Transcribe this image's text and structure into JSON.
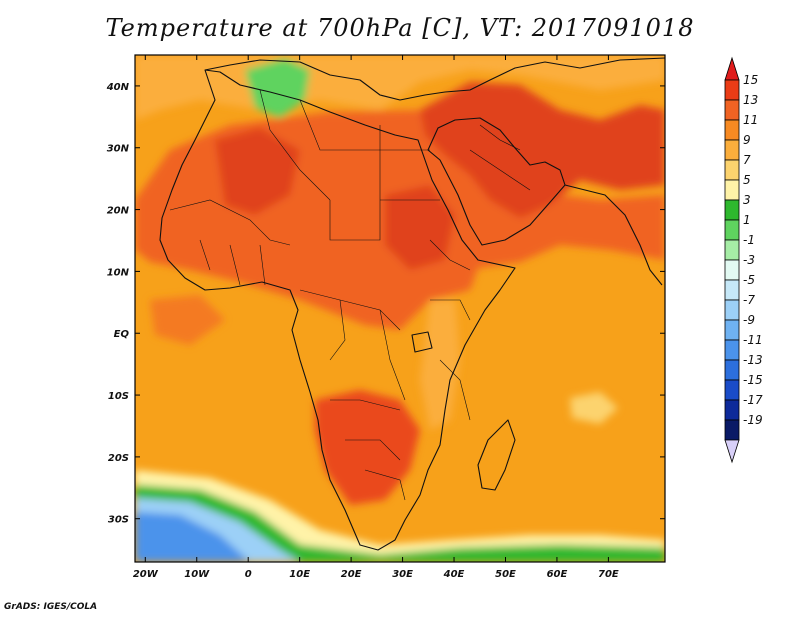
{
  "title": "Temperature at 700hPa [C], VT: 2017091018",
  "credit": "GrADS: IGES/COLA",
  "map": {
    "lon_range": [
      -22,
      81
    ],
    "lat_range": [
      -37,
      45
    ],
    "lat_ticks": [
      {
        "value": 40,
        "label": "40N"
      },
      {
        "value": 30,
        "label": "30N"
      },
      {
        "value": 20,
        "label": "20N"
      },
      {
        "value": 10,
        "label": "10N"
      },
      {
        "value": 0,
        "label": "EQ"
      },
      {
        "value": -10,
        "label": "10S"
      },
      {
        "value": -20,
        "label": "20S"
      },
      {
        "value": -30,
        "label": "30S"
      }
    ],
    "lon_ticks": [
      {
        "value": -20,
        "label": "20W"
      },
      {
        "value": -10,
        "label": "10W"
      },
      {
        "value": 0,
        "label": "0"
      },
      {
        "value": 10,
        "label": "10E"
      },
      {
        "value": 20,
        "label": "20E"
      },
      {
        "value": 30,
        "label": "30E"
      },
      {
        "value": 40,
        "label": "40E"
      },
      {
        "value": 50,
        "label": "50E"
      },
      {
        "value": 60,
        "label": "60E"
      },
      {
        "value": 70,
        "label": "70E"
      }
    ],
    "background_color": "#f7a11a"
  },
  "colorbar": {
    "labels": [
      "15",
      "13",
      "11",
      "9",
      "7",
      "5",
      "3",
      "1",
      "-1",
      "-3",
      "-5",
      "-7",
      "-9",
      "-11",
      "-13",
      "-15",
      "-17",
      "-19"
    ],
    "colors": [
      "#e01b1b",
      "#ea3c16",
      "#f06323",
      "#f78a22",
      "#fbae3c",
      "#fcd36e",
      "#fff3a8",
      "#2eb82e",
      "#5fd35f",
      "#a6eda6",
      "#e3faf3",
      "#c6e8f8",
      "#9cd0f7",
      "#6fb2f2",
      "#4b93eb",
      "#2c6fdd",
      "#1a4cc8",
      "#0d2a9a",
      "#0a1a66",
      "#d8d0f8"
    ]
  }
}
